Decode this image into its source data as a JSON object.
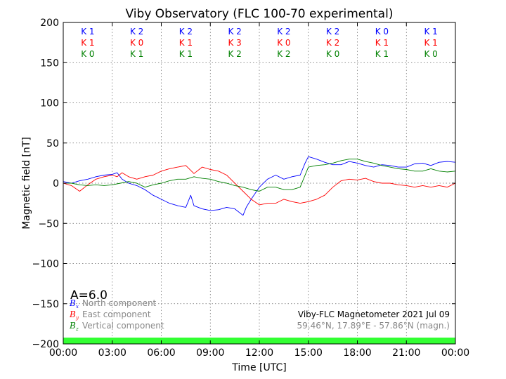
{
  "chart_data": {
    "type": "line",
    "title": "Viby Observatory (FLC 100-70 experimental)",
    "xlabel": "Time [UTC]",
    "ylabel": "Magnetic field [nT]",
    "xlim": [
      0,
      24
    ],
    "ylim": [
      -200,
      200
    ],
    "x_ticks": [
      "00:00",
      "03:00",
      "06:00",
      "09:00",
      "12:00",
      "15:00",
      "18:00",
      "21:00",
      "00:00"
    ],
    "y_ticks": [
      "200",
      "150",
      "100",
      "50",
      "0",
      "−50",
      "−100",
      "−150",
      "−200"
    ],
    "grid": true,
    "k_indices": {
      "colors": [
        "#0000ff",
        "#ff0000",
        "#008000"
      ],
      "rows": [
        [
          "K 1",
          "K 2",
          "K 2",
          "K 2",
          "K 2",
          "K 2",
          "K 0",
          "K 1"
        ],
        [
          "K 1",
          "K 0",
          "K 1",
          "K 3",
          "K 0",
          "K 2",
          "K 1",
          "K 1"
        ],
        [
          "K 0",
          "K 1",
          "K 1",
          "K 2",
          "K 2",
          "K 0",
          "K 1",
          "K 0"
        ]
      ]
    },
    "a_index": "A=6.0",
    "legend": {
      "placement": "bottom-left",
      "entries": [
        {
          "symbol": "B",
          "sub": "x",
          "label": "North component",
          "color": "#0000ff"
        },
        {
          "symbol": "B",
          "sub": "y",
          "label": "East component",
          "color": "#ff0000"
        },
        {
          "symbol": "B",
          "sub": "z",
          "label": "Vertical component",
          "color": "#008000"
        }
      ]
    },
    "info_line1": "Viby-FLC Magnetometer 2021 Jul 09",
    "info_line2": "59.46°N, 17.89°E - 57.86°N (magn.)",
    "status_bar_color": "#33ff33",
    "series": [
      {
        "color": "#0000ff",
        "x": [
          0,
          0.5,
          1,
          1.5,
          2,
          2.5,
          3,
          3.3,
          3.6,
          4,
          4.5,
          5,
          5.5,
          6,
          6.5,
          7,
          7.5,
          7.8,
          8,
          8.5,
          9,
          9.5,
          10,
          10.5,
          11,
          11.2,
          11.5,
          12,
          12.5,
          13,
          13.5,
          14,
          14.5,
          14.8,
          15,
          15.5,
          16,
          16.5,
          17,
          17.5,
          18,
          18.5,
          19,
          19.5,
          20,
          20.5,
          21,
          21.5,
          22,
          22.5,
          23,
          23.5,
          24
        ],
        "y": [
          2,
          0,
          3,
          5,
          8,
          10,
          11,
          13,
          5,
          0,
          -3,
          -8,
          -15,
          -20,
          -25,
          -28,
          -30,
          -15,
          -28,
          -32,
          -34,
          -33,
          -30,
          -32,
          -40,
          -30,
          -20,
          -5,
          5,
          10,
          5,
          8,
          10,
          25,
          33,
          30,
          26,
          23,
          23,
          27,
          25,
          22,
          20,
          23,
          22,
          20,
          20,
          24,
          25,
          22,
          26,
          27,
          26
        ]
      },
      {
        "color": "#ff0000",
        "x": [
          0,
          0.5,
          1,
          1.5,
          2,
          2.5,
          3,
          3.3,
          3.6,
          4,
          4.5,
          5,
          5.5,
          6,
          6.5,
          7,
          7.5,
          8,
          8.5,
          9,
          9.5,
          10,
          10.5,
          11,
          11.5,
          12,
          12.5,
          13,
          13.5,
          14,
          14.5,
          15,
          15.5,
          16,
          16.5,
          17,
          17.5,
          18,
          18.5,
          19,
          19.5,
          20,
          20.5,
          21,
          21.5,
          22,
          22.5,
          23,
          23.5,
          24
        ],
        "y": [
          0,
          -3,
          -10,
          -2,
          5,
          8,
          10,
          8,
          13,
          8,
          5,
          8,
          10,
          15,
          18,
          20,
          22,
          12,
          20,
          17,
          15,
          10,
          0,
          -10,
          -20,
          -27,
          -25,
          -25,
          -20,
          -23,
          -25,
          -23,
          -20,
          -15,
          -5,
          3,
          5,
          4,
          6,
          2,
          0,
          0,
          -2,
          -3,
          -5,
          -3,
          -5,
          -3,
          -5,
          0
        ]
      },
      {
        "color": "#008000",
        "x": [
          0,
          0.5,
          1,
          1.5,
          2,
          2.5,
          3,
          3.5,
          4,
          4.5,
          5,
          5.5,
          6,
          6.5,
          7,
          7.5,
          8,
          8.5,
          9,
          9.5,
          10,
          10.5,
          11,
          11.5,
          12,
          12.5,
          13,
          13.5,
          14,
          14.5,
          15,
          15.5,
          16,
          16.5,
          17,
          17.5,
          18,
          18.5,
          19,
          19.5,
          20,
          20.5,
          21,
          21.5,
          22,
          22.5,
          23,
          23.5,
          24
        ],
        "y": [
          0,
          0,
          -2,
          -3,
          -2,
          -3,
          -2,
          0,
          2,
          0,
          -5,
          -2,
          0,
          3,
          5,
          5,
          8,
          6,
          5,
          2,
          0,
          -3,
          -5,
          -8,
          -10,
          -5,
          -5,
          -8,
          -8,
          -5,
          20,
          22,
          23,
          25,
          28,
          30,
          30,
          27,
          25,
          22,
          20,
          18,
          17,
          15,
          15,
          18,
          15,
          14,
          15
        ]
      }
    ]
  }
}
